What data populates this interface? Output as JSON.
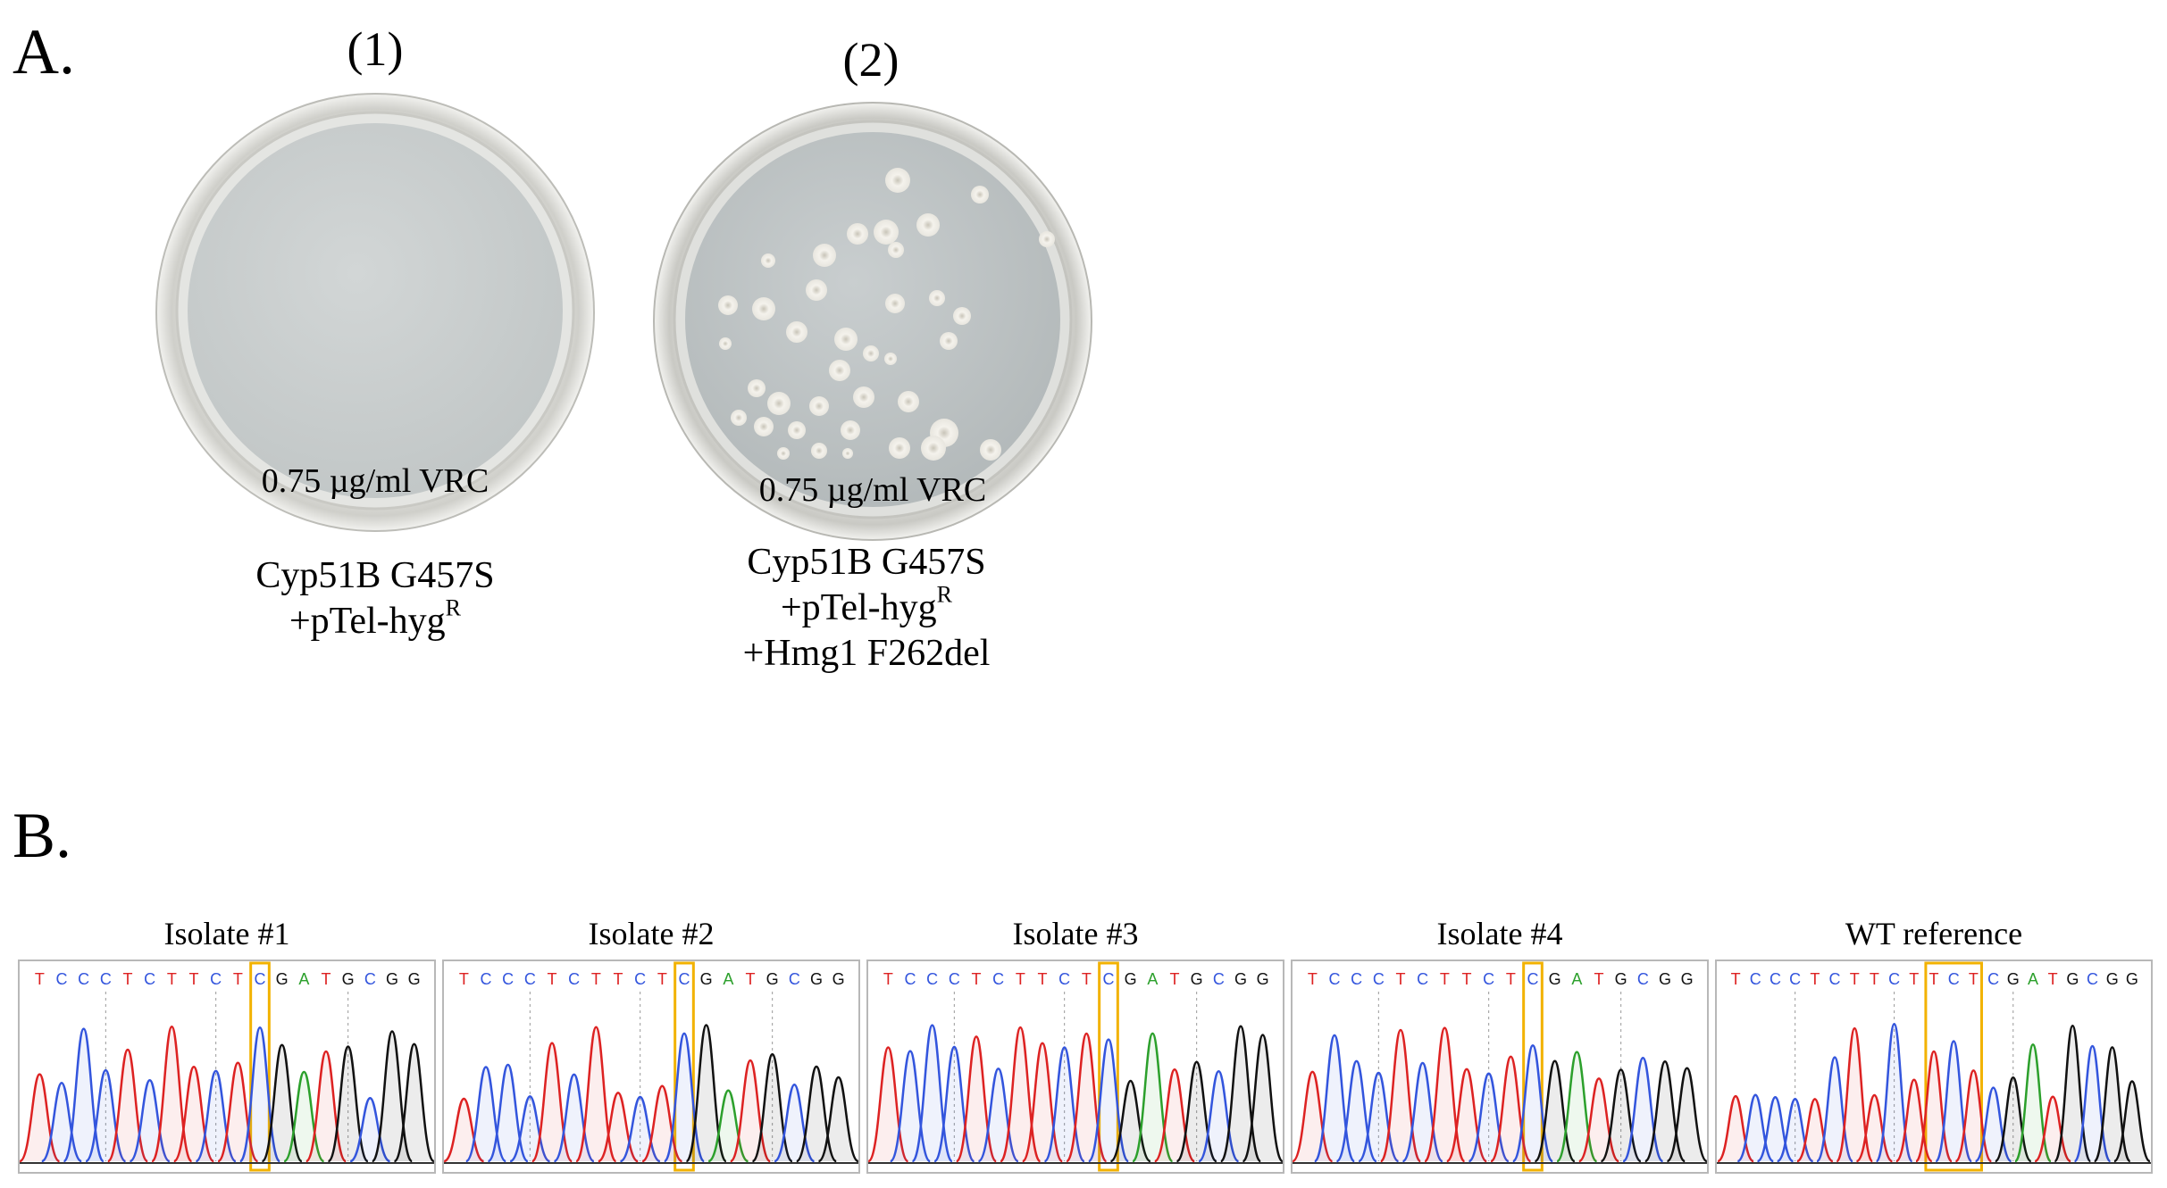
{
  "panel_a": {
    "letter": "A.",
    "plates": [
      {
        "label": "(1)",
        "medium": "0.75 µg/ml VRC",
        "caption": [
          "Cyp51B  G457S",
          "+pTel-hyg"
        ],
        "caption_sup": "R"
      },
      {
        "label": "(2)",
        "medium": "0.75 µg/ml VRC",
        "caption": [
          "Cyp51B  G457S",
          "+pTel-hyg",
          "+Hmg1  F262del"
        ],
        "caption_sup": "R"
      }
    ]
  },
  "panel_b": {
    "letter": "B.",
    "base_colors": {
      "A": "#2ca02c",
      "C": "#3355dd",
      "G": "#111111",
      "T": "#dd2222"
    },
    "highlight_color": "#f2b200",
    "chromatograms": [
      {
        "title": "Isolate #1",
        "sequence": "TCCCTCTTCTCGATGCGG",
        "highlight": [
          10
        ]
      },
      {
        "title": "Isolate #2",
        "sequence": "TCCCTCTTCTCGATGCGG",
        "highlight": [
          10
        ]
      },
      {
        "title": "Isolate #3",
        "sequence": "TCCCTCTTCTCGATGCGG",
        "highlight": [
          10
        ]
      },
      {
        "title": "Isolate #4",
        "sequence": "TCCCTCTTCTCGATGCGG",
        "highlight": [
          10
        ]
      },
      {
        "title": "WT reference",
        "sequence": "TCCCTCTTCTTCTCGATGCGG",
        "highlight": [
          10,
          11,
          12
        ]
      }
    ]
  }
}
